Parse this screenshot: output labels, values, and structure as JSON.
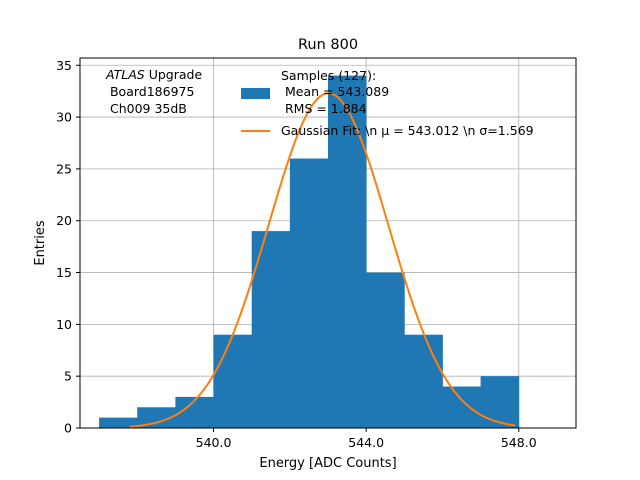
{
  "chart_data": {
    "type": "bar",
    "title": "Run 800",
    "xlabel": "Energy [ADC Counts]",
    "ylabel": "Entries",
    "xlim": [
      536.5,
      549.5
    ],
    "ylim": [
      0,
      35.7
    ],
    "xticks": [
      540.0,
      544.0,
      548.0
    ],
    "xtick_labels": [
      "540.0",
      "544.0",
      "548.0"
    ],
    "yticks": [
      0,
      5,
      10,
      15,
      20,
      25,
      30,
      35
    ],
    "ytick_labels": [
      "0",
      "5",
      "10",
      "15",
      "20",
      "25",
      "30",
      "35"
    ],
    "grid": true,
    "legend_position": "top-right",
    "annotation": {
      "line1_italic": "ATLAS",
      "line1_rest": " Upgrade",
      "line2": " Board186975",
      "line3": " Ch009 35dB"
    },
    "histogram": {
      "name_lines": [
        "Samples (127):",
        " Mean = 543.089",
        " RMS = 1.884"
      ],
      "color": "#1f77b4",
      "bin_edges": [
        537,
        538,
        539,
        540,
        541,
        542,
        543,
        544,
        545,
        546,
        547,
        548
      ],
      "counts": [
        1,
        2,
        3,
        9,
        19,
        26,
        34,
        15,
        9,
        4,
        5
      ]
    },
    "fit": {
      "name": "Gaussian Fit: \\n μ = 543.012 \\n σ=1.569",
      "color": "#ff7f0e",
      "mu": 543.012,
      "sigma": 1.569,
      "amplitude": 32.3,
      "x_range": [
        537.8,
        547.9
      ]
    }
  }
}
